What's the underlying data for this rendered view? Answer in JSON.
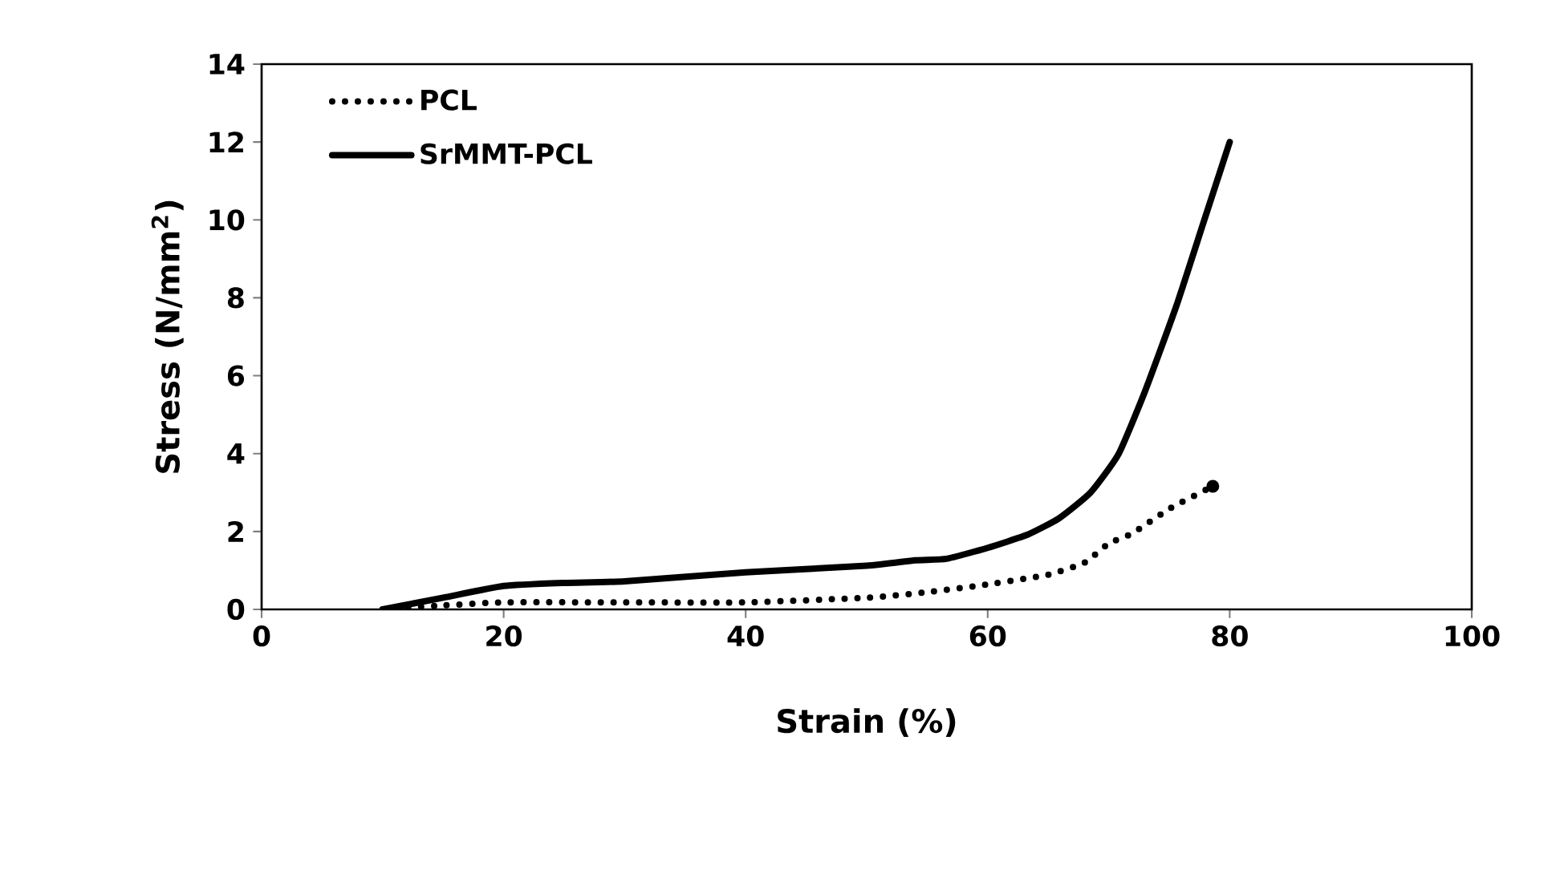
{
  "chart_data": {
    "type": "line",
    "xlabel": "Strain (%)",
    "ylabel": "Stress (N/mm$^{2}$)",
    "xlim": [
      0,
      100
    ],
    "ylim": [
      0,
      14
    ],
    "xticks": [
      0,
      20,
      40,
      60,
      80,
      100
    ],
    "yticks": [
      0,
      2,
      4,
      6,
      8,
      10,
      12,
      14
    ],
    "legend": "top left",
    "grid": false,
    "marker": "none",
    "series": [
      {
        "name": "PCL",
        "color": "#000000",
        "line_style": "dotted",
        "x": [
          10,
          15,
          20,
          30,
          40,
          50,
          55,
          60,
          65,
          68,
          70,
          72,
          75,
          78.6
        ],
        "values": [
          0,
          0.1,
          0.18,
          0.18,
          0.18,
          0.3,
          0.44,
          0.64,
          0.89,
          1.2,
          1.69,
          1.96,
          2.58,
          3.16
        ]
      },
      {
        "name": "SrMMT-PCL",
        "color": "#000000",
        "line_style": "solid",
        "x": [
          10,
          15,
          20,
          25,
          30,
          40,
          50,
          54,
          56.6,
          60,
          63.3,
          65.9,
          68.5,
          70.8,
          73,
          75.6,
          77.9,
          80
        ],
        "values": [
          0,
          0.3,
          0.6,
          0.68,
          0.72,
          0.95,
          1.12,
          1.26,
          1.3,
          1.58,
          1.92,
          2.34,
          3.0,
          3.98,
          5.6,
          7.8,
          10.0,
          12.0
        ]
      }
    ]
  }
}
